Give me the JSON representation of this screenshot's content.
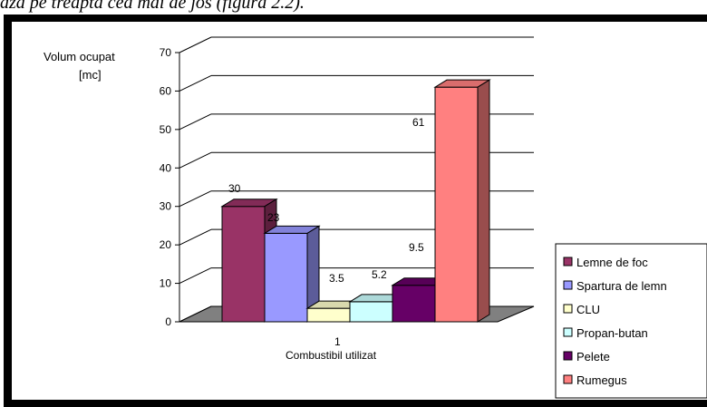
{
  "document": {
    "visible_text_fragment": "ază pe treapta cea mai de jos (figura 2.2)."
  },
  "chart_data": {
    "type": "bar",
    "ylabel_lines": [
      "Volum ocupat",
      "[mc]"
    ],
    "xlabel": "Combustibil utilizat",
    "categories": [
      "1"
    ],
    "ylim": [
      0,
      70
    ],
    "yticks": [
      0,
      10,
      20,
      30,
      40,
      50,
      60,
      70
    ],
    "grid": true,
    "projection": "3d",
    "legend_position": "right",
    "series": [
      {
        "name": "Lemne de foc",
        "values": [
          30
        ],
        "label": "30",
        "color": "#993366"
      },
      {
        "name": "Spartura de lemn",
        "values": [
          23
        ],
        "label": "23",
        "color": "#9999ff"
      },
      {
        "name": "CLU",
        "values": [
          3.5
        ],
        "label": "3.5",
        "color": "#ffffcc"
      },
      {
        "name": "Propan-butan",
        "values": [
          5.2
        ],
        "label": "5.2",
        "color": "#ccffff"
      },
      {
        "name": "Pelete",
        "values": [
          9.5
        ],
        "label": "9.5",
        "color": "#660066"
      },
      {
        "name": "Rumegus",
        "values": [
          61
        ],
        "label": "61",
        "color": "#ff8080"
      }
    ],
    "floor_color": "#808080",
    "bar_outline": "#000000"
  }
}
